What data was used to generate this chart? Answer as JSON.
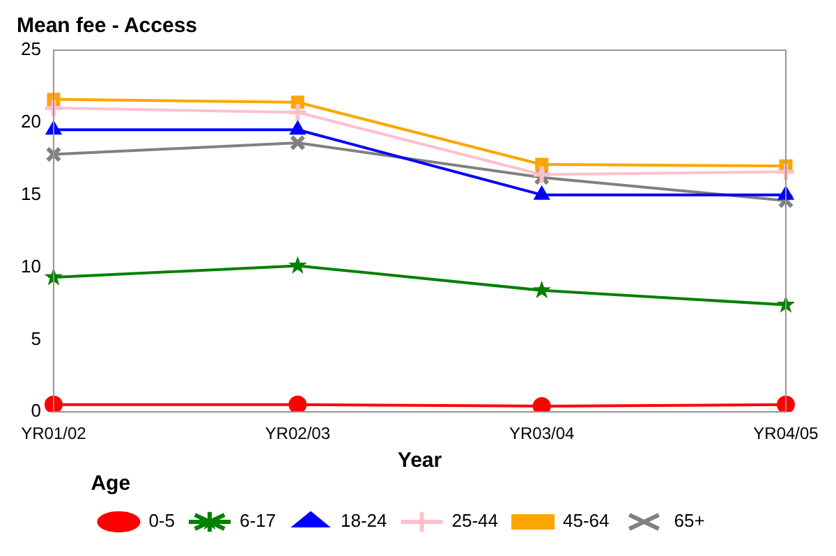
{
  "chart_data": {
    "type": "line",
    "title": "Mean fee - Access",
    "xlabel": "Year",
    "legend_title": "Age",
    "categories": [
      "YR01/02",
      "YR02/03",
      "YR03/04",
      "YR04/05"
    ],
    "series": [
      {
        "name": "0-5",
        "color": "#ff0000",
        "marker": "circle",
        "values": [
          0.5,
          0.5,
          0.4,
          0.5
        ]
      },
      {
        "name": "6-17",
        "color": "#008000",
        "marker": "star",
        "values": [
          9.3,
          10.1,
          8.4,
          7.4
        ]
      },
      {
        "name": "18-24",
        "color": "#0000ff",
        "marker": "triangle",
        "values": [
          19.5,
          19.5,
          15.0,
          15.0
        ]
      },
      {
        "name": "25-44",
        "color": "#ffc0cb",
        "marker": "cross",
        "values": [
          21.0,
          20.7,
          16.4,
          16.6
        ]
      },
      {
        "name": "45-64",
        "color": "#ffa500",
        "marker": "square",
        "values": [
          21.6,
          21.4,
          17.1,
          17.0
        ]
      },
      {
        "name": "65+",
        "color": "#808080",
        "marker": "x",
        "values": [
          17.8,
          18.6,
          16.2,
          14.6
        ]
      }
    ],
    "ylim": [
      0,
      25
    ],
    "yticks": [
      0,
      5,
      10,
      15,
      20,
      25
    ],
    "grid": false,
    "legend": "bottom",
    "line_style": "solid"
  }
}
